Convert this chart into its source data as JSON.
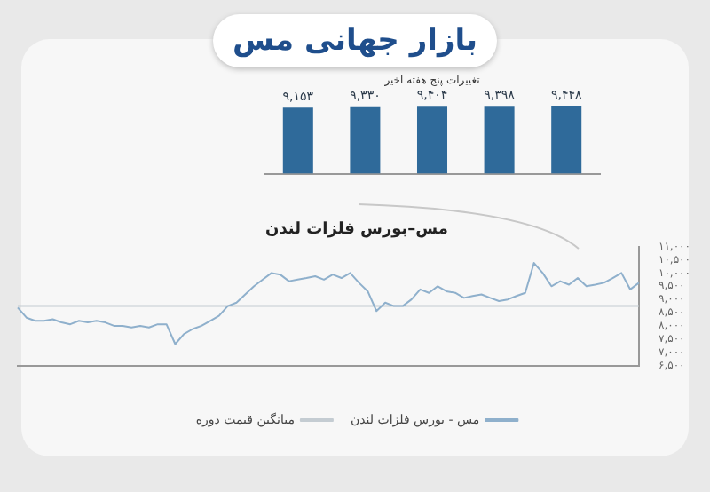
{
  "chart_data": [
    {
      "type": "bar",
      "title": "بازار جهانی مس",
      "subtitle": "تغییرات پنج هفته اخیر",
      "categories": [
        null,
        null,
        null,
        null,
        null
      ],
      "values": [
        9153,
        9330,
        9404,
        9398,
        9448
      ],
      "value_labels": [
        "۹,۱۵۳",
        "۹,۳۳۰",
        "۹,۴۰۴",
        "۹,۳۹۸",
        "۹,۴۴۸"
      ],
      "color": "#2f6a9a",
      "tick_labels": "x",
      "grid": false,
      "legend": false
    },
    {
      "type": "line",
      "title": "مس–بورس فلزات لندن",
      "categories": [
        null,
        null,
        null,
        null,
        null,
        null,
        null,
        null,
        null,
        null,
        null,
        null,
        null,
        null,
        null,
        null,
        null,
        null,
        null,
        null,
        null,
        null,
        null,
        null,
        null,
        null,
        null,
        null,
        null,
        null,
        null,
        null,
        null,
        null,
        null,
        null,
        null,
        null,
        null,
        null,
        null,
        null,
        null,
        null,
        null,
        null,
        null,
        null,
        null,
        null,
        null,
        null,
        null,
        null,
        null,
        null,
        null,
        null,
        null,
        null,
        null,
        null,
        null,
        null,
        null,
        null,
        null,
        null,
        null,
        null,
        null,
        null
      ],
      "series": [
        {
          "name": "مس - بورس فلزات لندن",
          "color": "#8fb0cc",
          "values": [
            8690,
            8310,
            8190,
            8190,
            8250,
            8130,
            8060,
            8190,
            8130,
            8190,
            8130,
            8000,
            8000,
            7940,
            8000,
            7940,
            8060,
            8060,
            7310,
            7690,
            7880,
            8000,
            8190,
            8380,
            8750,
            8880,
            9190,
            9500,
            9750,
            10000,
            9940,
            9690,
            9750,
            9810,
            9880,
            9750,
            9940,
            9810,
            10000,
            9630,
            9310,
            8560,
            8880,
            8750,
            8750,
            9000,
            9380,
            9250,
            9500,
            9310,
            9250,
            9060,
            9130,
            9190,
            9060,
            8940,
            9000,
            9130,
            9250,
            10380,
            10000,
            9500,
            9690,
            9560,
            9810,
            9500,
            9560,
            9630,
            9810,
            10000,
            9380,
            9630
          ]
        },
        {
          "name": "میانگین قیمت دوره",
          "color": "#c4ccd2",
          "values": [
            8750,
            8750,
            8750,
            8750,
            8750,
            8750,
            8750,
            8750,
            8750,
            8750,
            8750,
            8750,
            8750,
            8750,
            8750,
            8750,
            8750,
            8750,
            8750,
            8750,
            8750,
            8750,
            8750,
            8750,
            8750,
            8750,
            8750,
            8750,
            8750,
            8750,
            8750,
            8750,
            8750,
            8750,
            8750,
            8750,
            8750,
            8750,
            8750,
            8750,
            8750,
            8750,
            8750,
            8750,
            8750,
            8750,
            8750,
            8750,
            8750,
            8750,
            8750,
            8750,
            8750,
            8750,
            8750,
            8750,
            8750,
            8750,
            8750,
            8750,
            8750,
            8750,
            8750,
            8750,
            8750,
            8750,
            8750,
            8750,
            8750,
            8750,
            8750,
            8750
          ]
        }
      ],
      "ylim": [
        6500,
        11000
      ],
      "yticks": [
        {
          "value": 6500,
          "label": "۶,۵۰۰"
        },
        {
          "value": 7000,
          "label": "۷,۰۰۰"
        },
        {
          "value": 7500,
          "label": "۷,۵۰۰"
        },
        {
          "value": 8000,
          "label": "۸,۰۰۰"
        },
        {
          "value": 8500,
          "label": "۸,۵۰۰"
        },
        {
          "value": 9000,
          "label": "۹,۰۰۰"
        },
        {
          "value": 9500,
          "label": "۹,۵۰۰"
        },
        {
          "value": 10000,
          "label": "۱۰,۰۰۰"
        },
        {
          "value": 10500,
          "label": "۱۰,۵۰۰"
        },
        {
          "value": 11000,
          "label": "۱۱,۰۰۰"
        }
      ],
      "grid": false,
      "legend": "bottom",
      "marker": "none",
      "line_style": "solid"
    }
  ]
}
